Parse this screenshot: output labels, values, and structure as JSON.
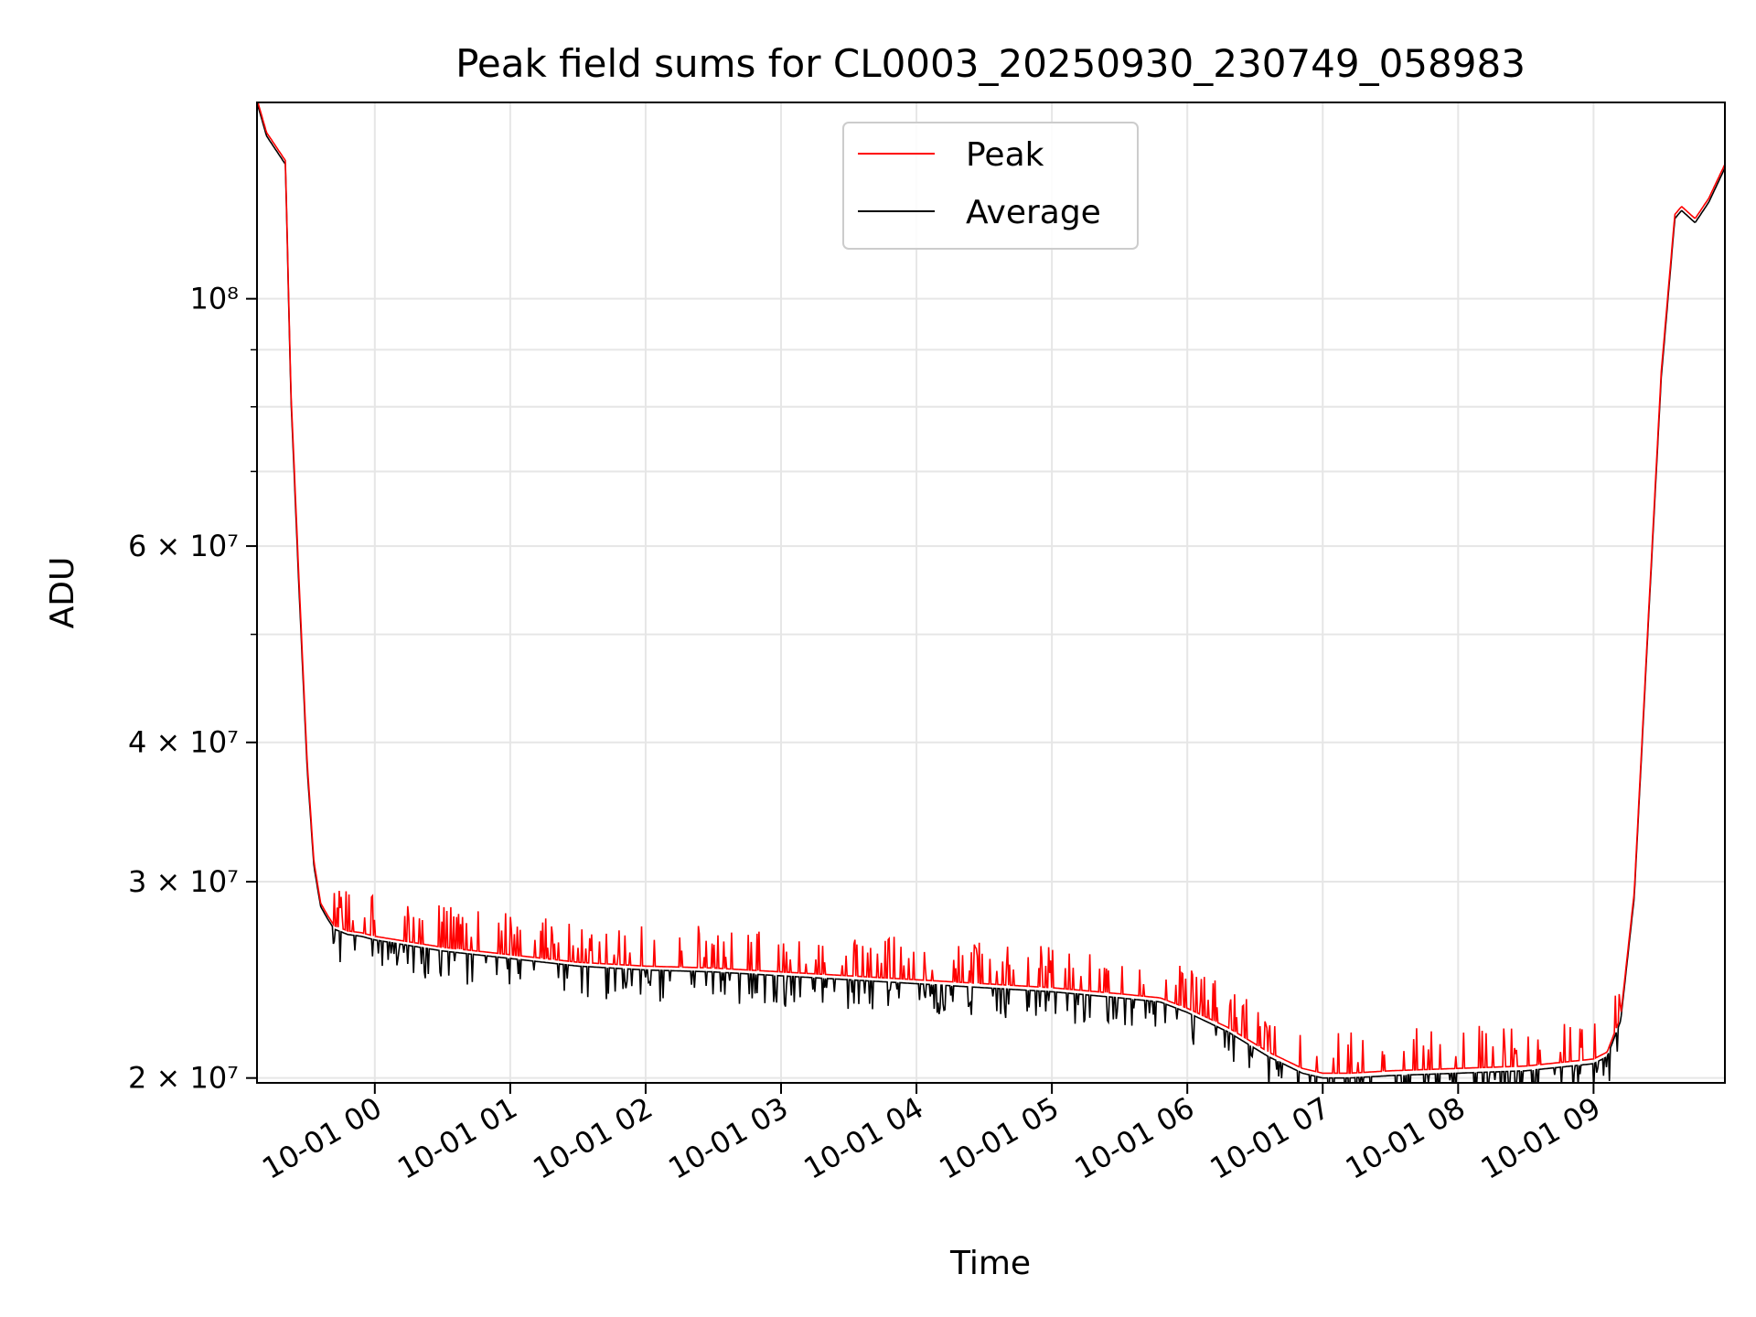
{
  "chart_data": {
    "type": "line",
    "title": "Peak field sums for CL0003_20250930_230749_058983",
    "xlabel": "Time",
    "ylabel": "ADU",
    "yscale": "log",
    "ylim": [
      19800000,
      150000000
    ],
    "xlim_hours": [
      -0.87,
      9.97
    ],
    "x_ticks": [
      {
        "hour": 0,
        "label": "10-01 00"
      },
      {
        "hour": 1,
        "label": "10-01 01"
      },
      {
        "hour": 2,
        "label": "10-01 02"
      },
      {
        "hour": 3,
        "label": "10-01 03"
      },
      {
        "hour": 4,
        "label": "10-01 04"
      },
      {
        "hour": 5,
        "label": "10-01 05"
      },
      {
        "hour": 6,
        "label": "10-01 06"
      },
      {
        "hour": 7,
        "label": "10-01 07"
      },
      {
        "hour": 8,
        "label": "10-01 08"
      },
      {
        "hour": 9,
        "label": "10-01 09"
      }
    ],
    "y_ticks": [
      {
        "value": 20000000,
        "label": "2 × 10⁷"
      },
      {
        "value": 30000000,
        "label": "3 × 10⁷"
      },
      {
        "value": 40000000,
        "label": "4 × 10⁷"
      },
      {
        "value": 60000000,
        "label": "6 × 10⁷"
      },
      {
        "value": 100000000,
        "label": "10⁸"
      }
    ],
    "y_minor_ticks": [
      50000000,
      70000000,
      80000000,
      90000000
    ],
    "grid": true,
    "legend": {
      "position": "top-center",
      "entries": [
        {
          "label": "Peak",
          "color": "#ff0000"
        },
        {
          "label": "Average",
          "color": "#000000"
        }
      ]
    },
    "series": [
      {
        "name": "Average",
        "color": "#000000",
        "x_hours": [
          -0.87,
          -0.8,
          -0.66,
          -0.62,
          -0.56,
          -0.5,
          -0.45,
          -0.4,
          -0.35,
          -0.3,
          -0.2,
          -0.1,
          0.0,
          0.5,
          1.0,
          1.5,
          2.0,
          2.5,
          3.0,
          3.5,
          4.0,
          4.5,
          5.0,
          5.5,
          5.8,
          6.0,
          6.3,
          6.6,
          6.85,
          7.0,
          7.2,
          7.5,
          8.0,
          8.5,
          9.0,
          9.1,
          9.2,
          9.3,
          9.4,
          9.5,
          9.6,
          9.65,
          9.75,
          9.85,
          9.97
        ],
        "values": [
          150000000,
          140000000,
          132000000,
          82000000,
          55000000,
          38000000,
          31000000,
          28500000,
          27800000,
          27200000,
          26900000,
          26800000,
          26600000,
          26000000,
          25600000,
          25200000,
          25000000,
          24900000,
          24700000,
          24500000,
          24300000,
          24100000,
          23900000,
          23600000,
          23400000,
          22900000,
          22000000,
          20900000,
          20200000,
          20000000,
          20000000,
          20100000,
          20200000,
          20300000,
          20600000,
          20900000,
          22500000,
          29000000,
          50000000,
          85000000,
          118000000,
          120000000,
          117000000,
          122000000,
          131000000
        ]
      },
      {
        "name": "Peak",
        "color": "#ff0000",
        "x_hours": [
          -0.87,
          -0.8,
          -0.66,
          -0.62,
          -0.56,
          -0.5,
          -0.45,
          -0.4,
          -0.35,
          -0.3,
          -0.2,
          -0.1,
          0.0,
          0.5,
          1.0,
          1.5,
          2.0,
          2.5,
          3.0,
          3.5,
          4.0,
          4.5,
          5.0,
          5.5,
          5.8,
          6.0,
          6.3,
          6.6,
          6.85,
          7.0,
          7.2,
          7.5,
          8.0,
          8.5,
          9.0,
          9.1,
          9.2,
          9.3,
          9.4,
          9.5,
          9.6,
          9.65,
          9.75,
          9.85,
          9.97
        ],
        "values": [
          151000000,
          141000000,
          133000000,
          83000000,
          56000000,
          38500000,
          31300000,
          28700000,
          28000000,
          27400000,
          27100000,
          27000000,
          26800000,
          26200000,
          25800000,
          25400000,
          25200000,
          25100000,
          24900000,
          24700000,
          24500000,
          24300000,
          24100000,
          23800000,
          23600000,
          23100000,
          22200000,
          21100000,
          20400000,
          20200000,
          20200000,
          20300000,
          20400000,
          20500000,
          20800000,
          21100000,
          22700000,
          29300000,
          50500000,
          86000000,
          119000000,
          121000000,
          118000000,
          123000000,
          132000000
        ]
      }
    ]
  }
}
